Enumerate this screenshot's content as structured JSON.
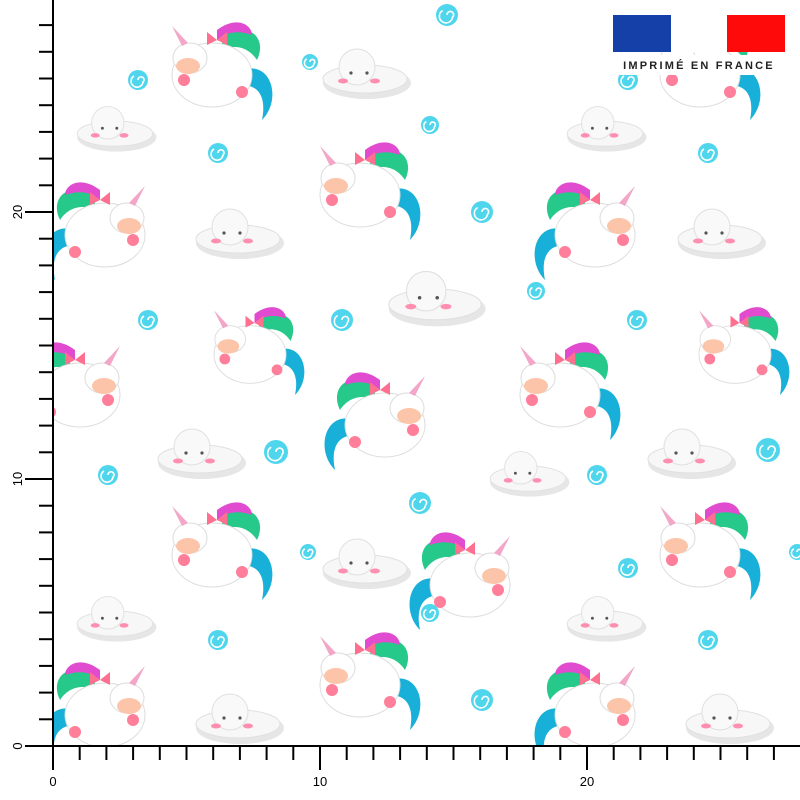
{
  "badge": {
    "text": "IMPRIMÉ EN FRANCE"
  },
  "ruler": {
    "x_labels": [
      "0",
      "10",
      "20"
    ],
    "y_labels": [
      "0",
      "10",
      "20"
    ]
  }
}
